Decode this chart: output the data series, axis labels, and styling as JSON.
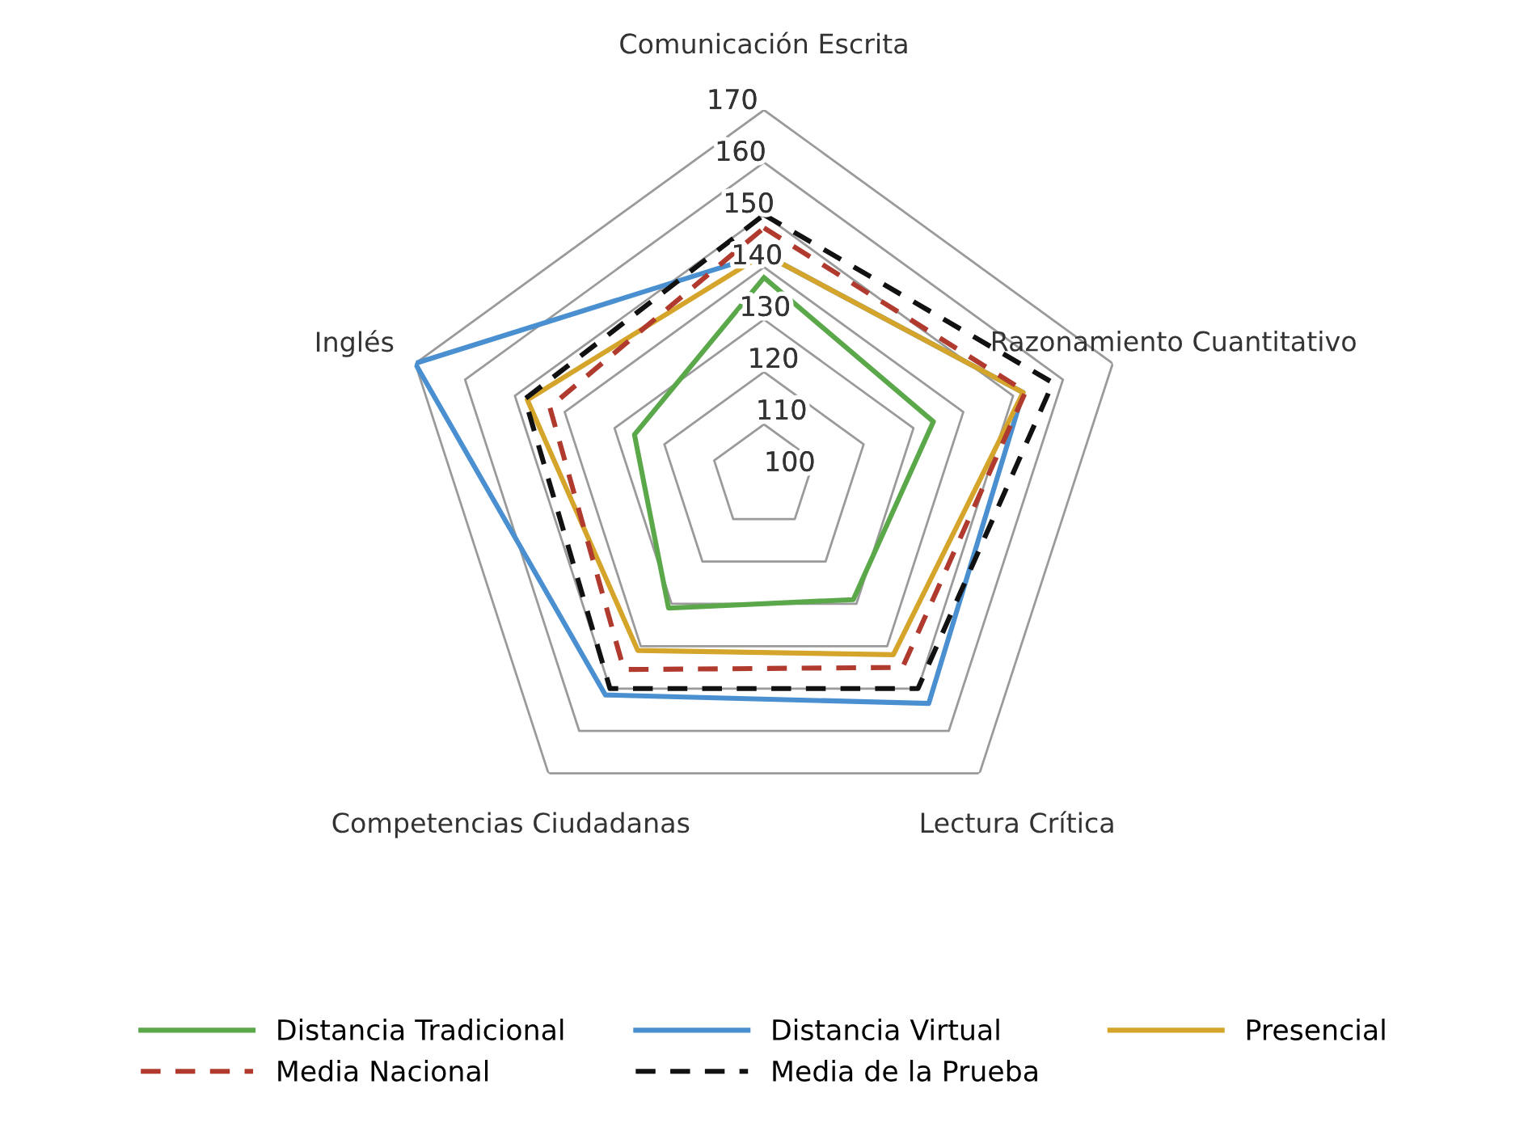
{
  "chart_data": {
    "type": "radar",
    "categories": [
      "Comunicación Escrita",
      "Razonamiento Cuantitativo",
      "Lectura Crítica",
      "Competencias Ciudadanas",
      "Inglés"
    ],
    "ylim": [
      100,
      170
    ],
    "yticks": [
      100,
      110,
      120,
      130,
      140,
      150,
      160,
      170
    ],
    "grid": true,
    "legend": "bottom",
    "series": [
      {
        "name": "Distancia Tradicional",
        "color": "#5aa84a",
        "line_style": "solid",
        "values": [
          138,
          134,
          129,
          131,
          126
        ]
      },
      {
        "name": "Distancia Virtual",
        "color": "#4a90d0",
        "line_style": "solid",
        "values": [
          142.5,
          152,
          153.5,
          151.5,
          170
        ]
      },
      {
        "name": "Presencial",
        "color": "#d4a52a",
        "line_style": "solid",
        "values": [
          142.5,
          152,
          142,
          141,
          147.5
        ]
      },
      {
        "name": "Media Nacional",
        "color": "#b03a2e",
        "line_style": "dashed",
        "values": [
          147.5,
          152.5,
          145,
          145.5,
          143
        ]
      },
      {
        "name": "Media de la Prueba",
        "color": "#111111",
        "line_style": "dashed",
        "values": [
          150,
          158,
          150,
          150,
          148
        ]
      }
    ]
  }
}
